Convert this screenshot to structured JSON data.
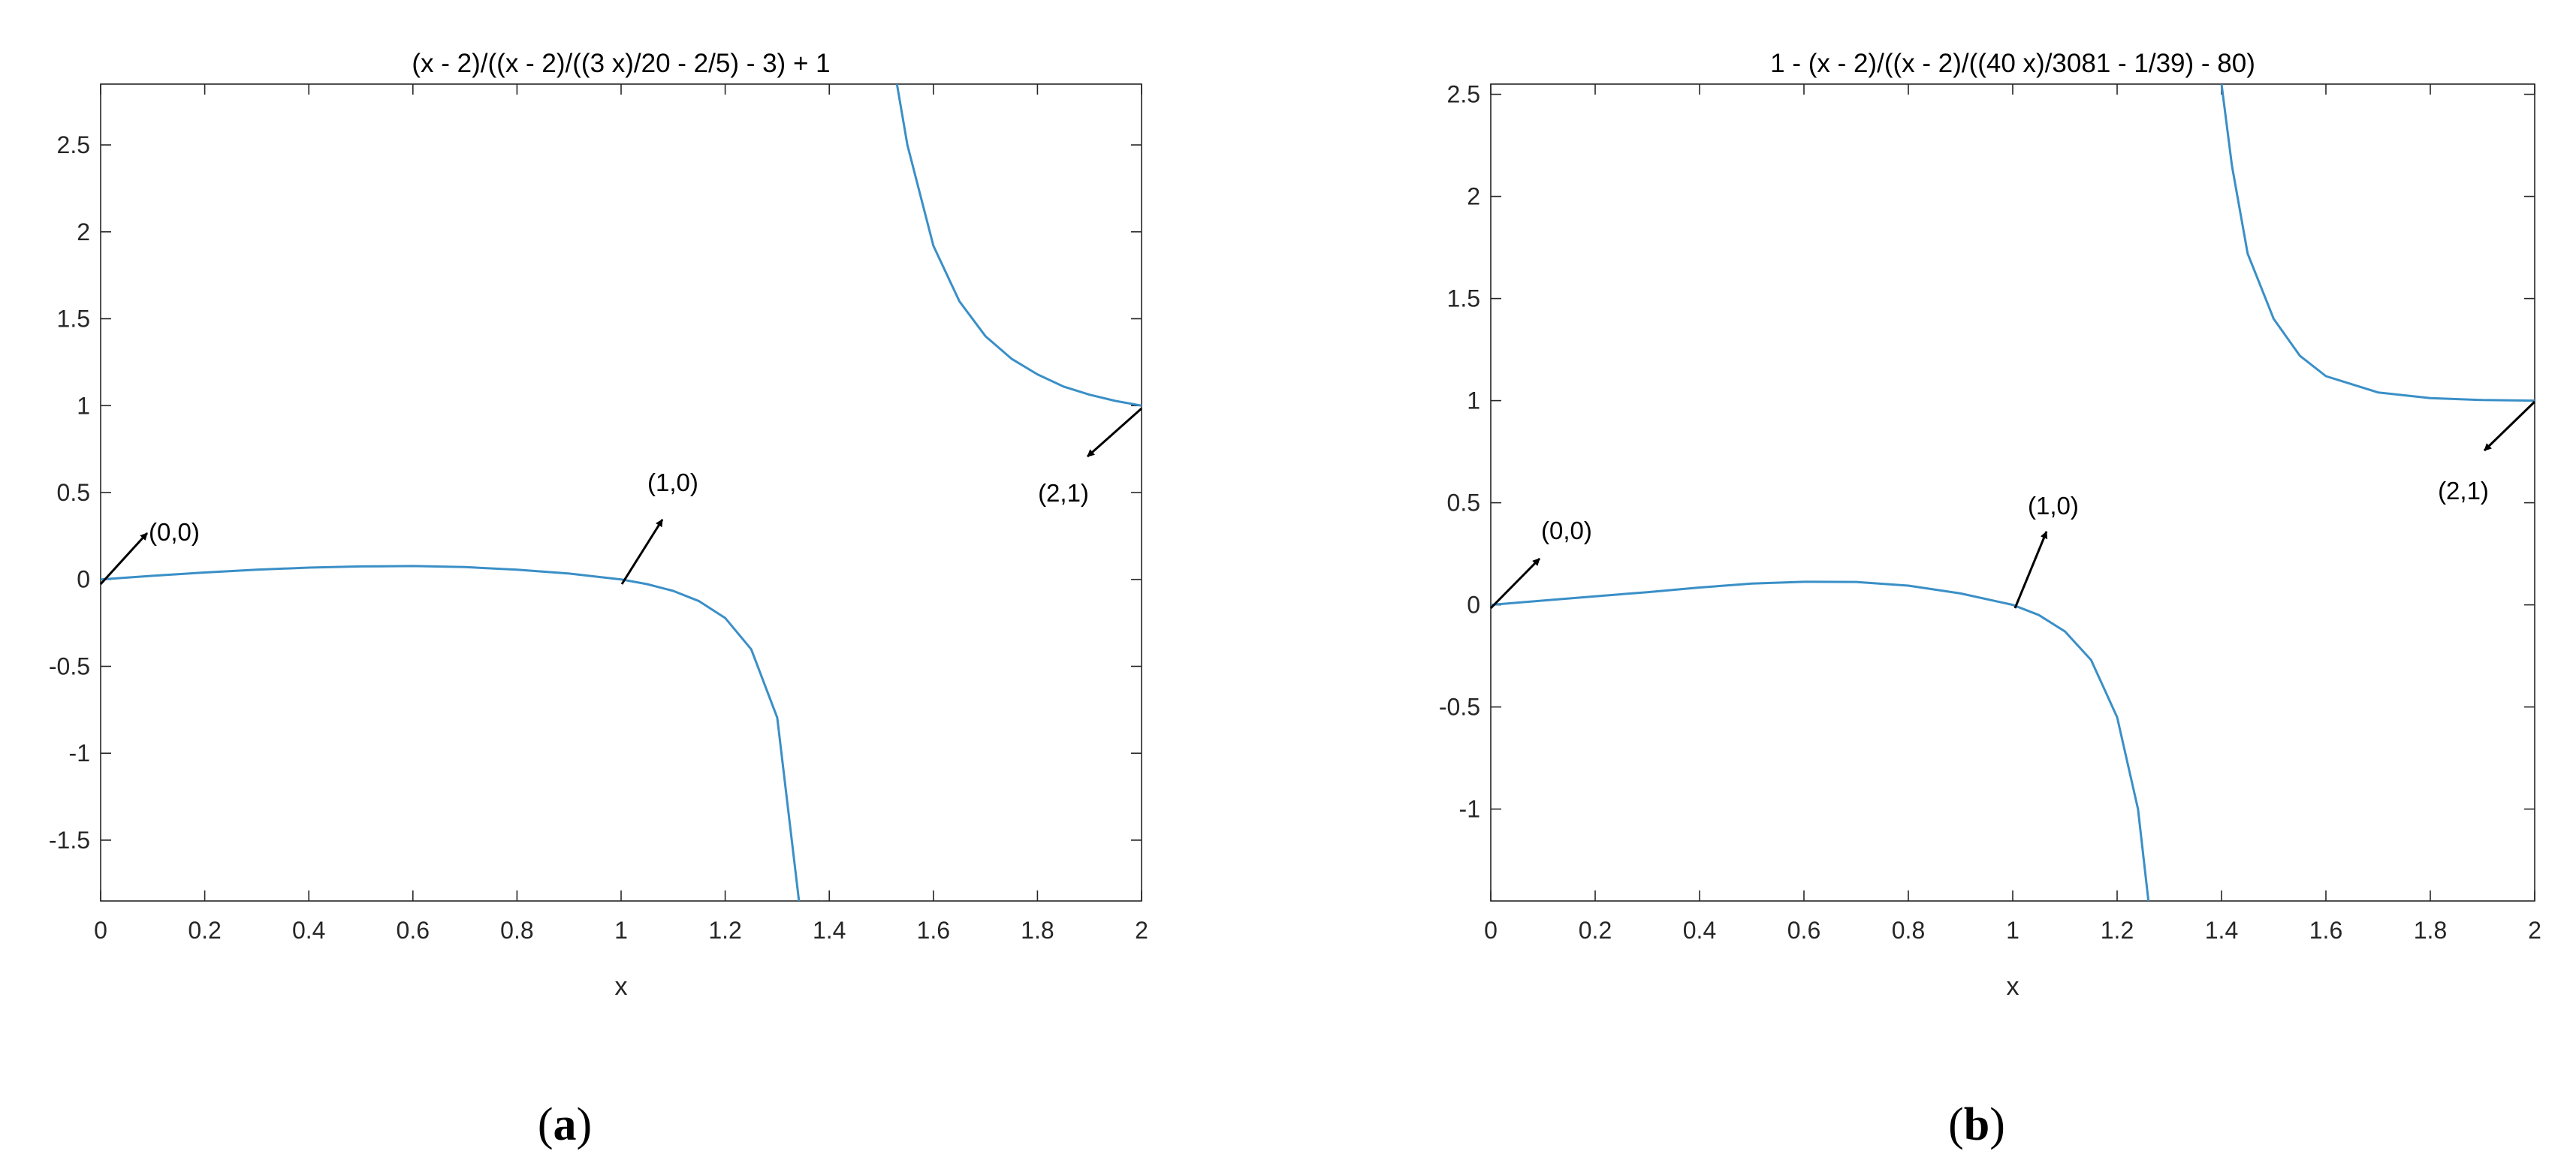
{
  "chart_data": [
    {
      "type": "line",
      "title": "(x - 2)/((x - 2)/((3 x)/20 - 2/5) - 3) + 1",
      "xlabel": "x",
      "ylabel": "",
      "xlim": [
        0,
        2
      ],
      "ylim": [
        -1.85,
        2.85
      ],
      "xticks": [
        0,
        0.2,
        0.4,
        0.6,
        0.8,
        1,
        1.2,
        1.4,
        1.6,
        1.8,
        2
      ],
      "xtick_labels": [
        "0",
        "0.2",
        "0.4",
        "0.6",
        "0.8",
        "1",
        "1.2",
        "1.4",
        "1.6",
        "1.8",
        "2"
      ],
      "yticks": [
        -1.5,
        -1,
        -0.5,
        0,
        0.5,
        1,
        1.5,
        2,
        2.5
      ],
      "ytick_labels": [
        "-1.5",
        "-1",
        "-0.5",
        "0",
        "0.5",
        "1",
        "1.5",
        "2",
        "2.5"
      ],
      "grid": false,
      "line_color": "#3a8fc7",
      "series": [
        {
          "x": [
            0,
            0.1,
            0.2,
            0.3,
            0.4,
            0.5,
            0.6,
            0.7,
            0.8,
            0.9,
            1.0,
            1.05,
            1.1,
            1.15,
            1.2,
            1.25,
            1.3,
            1.35,
            1.3875
          ],
          "y": [
            0,
            0.021,
            0.04,
            0.056,
            0.068,
            0.075,
            0.077,
            0.071,
            0.056,
            0.034,
            0,
            -0.027,
            -0.066,
            -0.125,
            -0.222,
            -0.402,
            -0.795,
            -2.059,
            -1.85
          ]
        },
        {
          "x": [
            1.53,
            1.55,
            1.6,
            1.65,
            1.7,
            1.75,
            1.8,
            1.85,
            1.9,
            1.95,
            2.0
          ],
          "y": [
            2.85,
            2.5,
            1.92,
            1.6,
            1.4,
            1.27,
            1.18,
            1.11,
            1.063,
            1.027,
            1.0
          ]
        }
      ],
      "annotations": [
        {
          "text": "(0,0)",
          "at": [
            0,
            0
          ]
        },
        {
          "text": "(1,0)",
          "at": [
            1,
            0
          ]
        },
        {
          "text": "(2,1)",
          "at": [
            2,
            1
          ]
        }
      ],
      "subcaption_paren_open": "(",
      "subcaption_letter": "a",
      "subcaption_paren_close": ")"
    },
    {
      "type": "line",
      "title": "1 - (x - 2)/((x - 2)/((40 x)/3081 - 1/39) - 80)",
      "xlabel": "x",
      "ylabel": "",
      "xlim": [
        0,
        2
      ],
      "ylim": [
        -1.45,
        2.55
      ],
      "xticks": [
        0,
        0.2,
        0.4,
        0.6,
        0.8,
        1,
        1.2,
        1.4,
        1.6,
        1.8,
        2
      ],
      "xtick_labels": [
        "0",
        "0.2",
        "0.4",
        "0.6",
        "0.8",
        "1",
        "1.2",
        "1.4",
        "1.6",
        "1.8",
        "2"
      ],
      "yticks": [
        -1,
        -0.5,
        0,
        0.5,
        1,
        1.5,
        2,
        2.5
      ],
      "ytick_labels": [
        "-1",
        "-0.5",
        "0",
        "0.5",
        "1",
        "1.5",
        "2",
        "2.5"
      ],
      "grid": false,
      "line_color": "#3a8fc7",
      "series": [
        {
          "x": [
            0,
            0.1,
            0.2,
            0.3,
            0.4,
            0.5,
            0.6,
            0.7,
            0.8,
            0.9,
            1.0,
            1.05,
            1.1,
            1.15,
            1.2,
            1.24,
            1.26
          ],
          "y": [
            0,
            0.021,
            0.042,
            0.062,
            0.085,
            0.104,
            0.113,
            0.112,
            0.094,
            0.056,
            0,
            -0.05,
            -0.13,
            -0.27,
            -0.55,
            -1.0,
            -1.45
          ]
        },
        {
          "x": [
            1.4,
            1.42,
            1.45,
            1.5,
            1.55,
            1.6,
            1.7,
            1.8,
            1.9,
            2.0
          ],
          "y": [
            2.55,
            2.15,
            1.72,
            1.4,
            1.22,
            1.12,
            1.04,
            1.012,
            1.003,
            1.0
          ]
        }
      ],
      "annotations": [
        {
          "text": "(0,0)",
          "at": [
            0,
            0
          ]
        },
        {
          "text": "(1,0)",
          "at": [
            1,
            0
          ]
        },
        {
          "text": "(2,1)",
          "at": [
            2,
            1
          ]
        }
      ],
      "subcaption_paren_open": "(",
      "subcaption_letter": "b",
      "subcaption_paren_close": ")"
    }
  ]
}
